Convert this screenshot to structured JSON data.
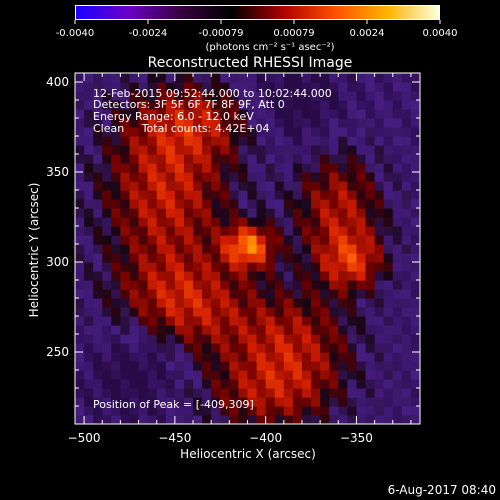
{
  "colorbar": {
    "ticks": [
      "-0.0040",
      "-0.0024",
      "-0.00079",
      "0.00079",
      "0.0024",
      "0.0040"
    ],
    "unit_label": "(photons cm⁻² s⁻¹ asec⁻²)",
    "colors": [
      "#1a00ff",
      "#6a00c8",
      "#3a0040",
      "#000000",
      "#b00000",
      "#ff5000",
      "#ffb400",
      "#ffffe0"
    ]
  },
  "chart_data": {
    "type": "heatmap",
    "title": "Reconstructed RHESSI Image",
    "xlabel": "Heliocentric X (arcsec)",
    "ylabel": "Heliocentric Y (arcsec)",
    "xlim": [
      -505,
      -315
    ],
    "ylim": [
      210,
      405
    ],
    "x_ticks": [
      -500,
      -450,
      -400,
      -350
    ],
    "y_ticks": [
      250,
      300,
      350,
      400
    ],
    "annotations": {
      "line1": "12-Feb-2015 09:52:44.000 to 10:02:44.000",
      "line2": "Detectors: 3F 5F 6F 7F 8F 9F, Att 0",
      "line3": "Energy Range: 6.0 - 12.0 keV",
      "line4": "Clean     Total counts: 4.42E+04",
      "peak": "Position of Peak = [-409,309]"
    },
    "peak": [
      -409,
      309
    ]
  },
  "footer": {
    "timestamp": "6-Aug-2017 08:40"
  }
}
